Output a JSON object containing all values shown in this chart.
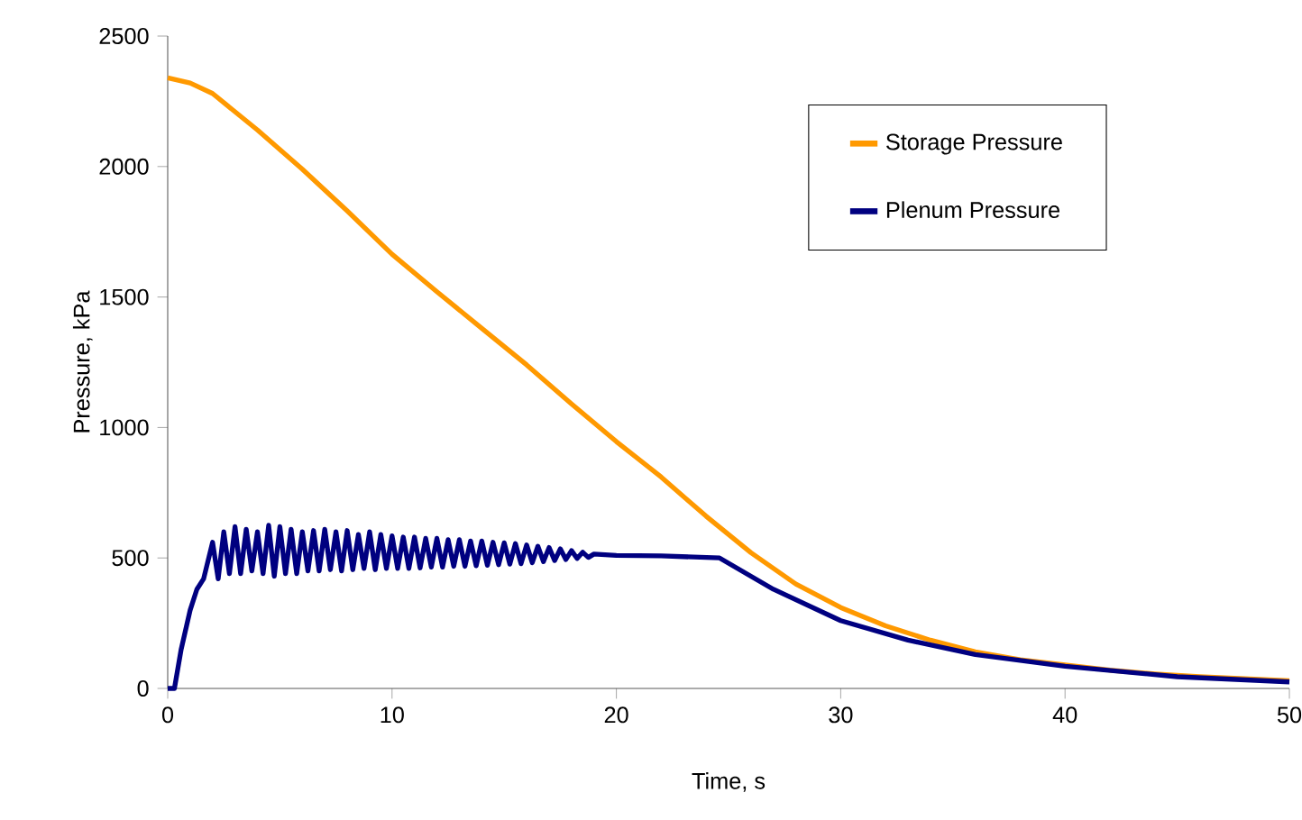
{
  "chart_data": {
    "type": "line",
    "xlabel": "Time, s",
    "ylabel": "Pressure, kPa",
    "xlim": [
      0,
      50
    ],
    "ylim": [
      0,
      2500
    ],
    "xticks": [
      0,
      10,
      20,
      30,
      40,
      50
    ],
    "yticks": [
      0,
      500,
      1000,
      1500,
      2000,
      2500
    ],
    "grid": false,
    "legend": "top right",
    "line_style": "solid",
    "marker": "none",
    "series": [
      {
        "name": "Storage Pressure",
        "color": "#ff9900",
        "x": [
          0,
          1,
          2,
          4,
          6,
          8,
          10,
          12,
          14,
          16,
          18,
          20,
          22,
          24,
          25,
          26,
          28,
          30,
          32,
          34,
          36,
          38,
          40,
          42,
          44,
          46,
          48,
          50
        ],
        "values": [
          2340,
          2320,
          2280,
          2140,
          1990,
          1830,
          1664,
          1520,
          1380,
          1240,
          1090,
          946,
          810,
          660,
          590,
          520,
          400,
          310,
          240,
          185,
          140,
          110,
          90,
          70,
          56,
          45,
          37,
          30
        ]
      },
      {
        "name": "Plenum Pressure",
        "color": "#000080",
        "x": [
          0,
          0.3,
          0.6,
          1.0,
          1.3,
          1.6,
          2.0,
          2.25,
          2.5,
          2.75,
          3.0,
          3.25,
          3.5,
          3.75,
          4.0,
          4.25,
          4.5,
          4.75,
          5.0,
          5.25,
          5.5,
          5.75,
          6.0,
          6.25,
          6.5,
          6.75,
          7.0,
          7.25,
          7.5,
          7.75,
          8.0,
          8.25,
          8.5,
          8.75,
          9.0,
          9.25,
          9.5,
          9.75,
          10.0,
          10.25,
          10.5,
          10.75,
          11.0,
          11.25,
          11.5,
          11.75,
          12.0,
          12.25,
          12.5,
          12.75,
          13.0,
          13.25,
          13.5,
          13.75,
          14.0,
          14.25,
          14.5,
          14.75,
          15.0,
          15.25,
          15.5,
          15.75,
          16.0,
          16.25,
          16.5,
          16.75,
          17.0,
          17.25,
          17.5,
          17.75,
          18.0,
          18.25,
          18.5,
          18.75,
          19.0,
          20,
          22,
          24.6,
          27,
          30,
          33,
          36,
          40,
          45,
          50
        ],
        "values": [
          0,
          0,
          150,
          300,
          380,
          420,
          560,
          420,
          600,
          440,
          620,
          440,
          610,
          450,
          600,
          440,
          625,
          430,
          620,
          440,
          610,
          440,
          600,
          450,
          605,
          450,
          610,
          455,
          600,
          450,
          605,
          455,
          590,
          460,
          600,
          455,
          590,
          460,
          585,
          460,
          580,
          460,
          580,
          462,
          575,
          465,
          575,
          465,
          570,
          468,
          570,
          468,
          565,
          470,
          565,
          472,
          560,
          474,
          558,
          476,
          555,
          478,
          550,
          482,
          545,
          486,
          540,
          490,
          535,
          494,
          528,
          498,
          522,
          502,
          515,
          510,
          508,
          500,
          380,
          260,
          185,
          130,
          85,
          45,
          25
        ]
      }
    ]
  }
}
